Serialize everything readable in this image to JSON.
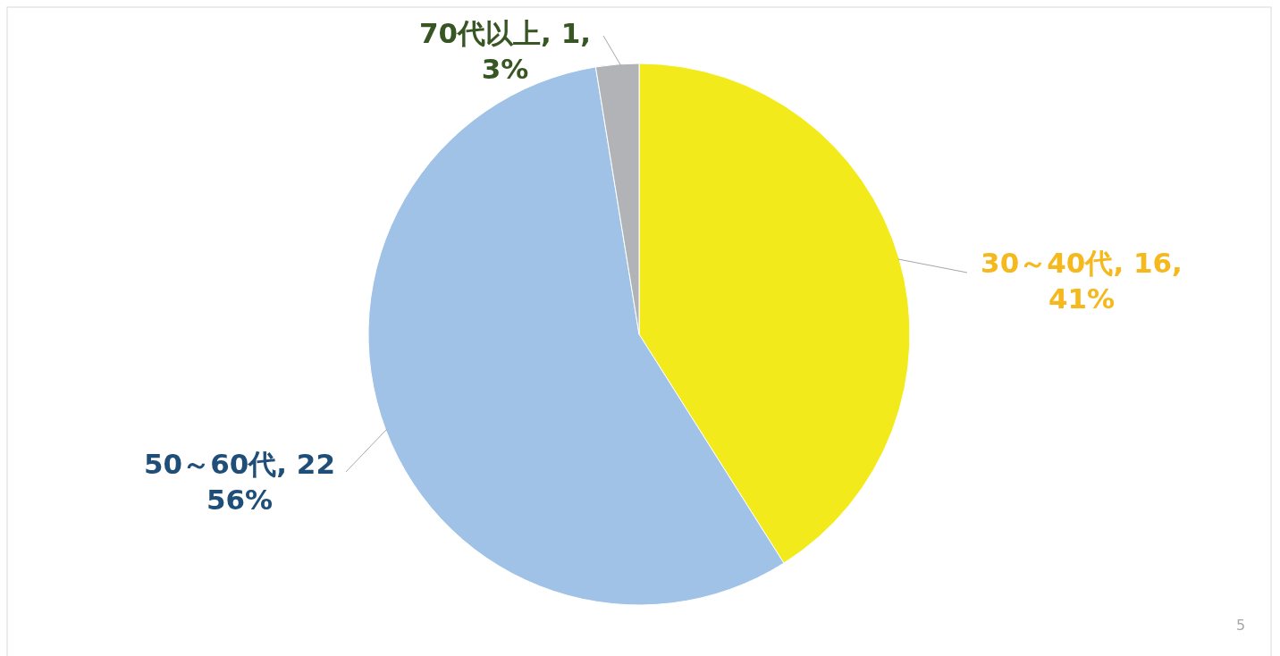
{
  "chart_data": {
    "type": "pie",
    "categories": [
      "30～40代",
      "50～60代",
      "70代以上"
    ],
    "values": [
      16,
      22,
      1
    ],
    "colors": [
      "#f2ea1a",
      "#9fc2e6",
      "#b1b3b7"
    ],
    "value_labels": [
      "16, 41%",
      "22 56%",
      "1, 3%"
    ],
    "annotations": [
      "5"
    ]
  }
}
